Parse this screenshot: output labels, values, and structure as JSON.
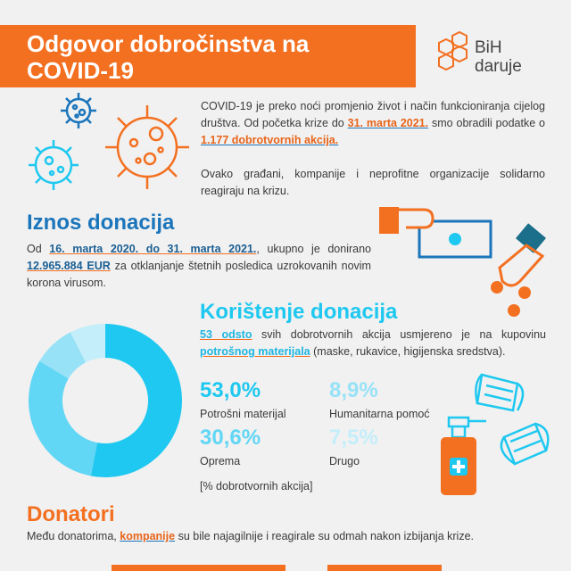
{
  "header": {
    "title": "Odgovor dobročinstva na COVID-19",
    "logo": [
      "BiH",
      "daruje"
    ]
  },
  "intro": {
    "paragraph1": [
      "COVID-19 je preko noći promjenio život i način funkcioniranja cijelog društva. Od početka krize do",
      "31. marta 2021.",
      "smo obradili podatke o",
      "1.177 dobrotvornih akcija."
    ],
    "paragraph2": "Ovako građani, kompanije i neprofitne organizacije solidarno reagiraju na krizu."
  },
  "donations": {
    "heading": "Iznos donacija",
    "text": [
      "Od",
      "16. marta 2020. do 31. marta 2021.",
      ", ukupno je donirano",
      "12.965.884 EUR",
      "za otklanjanje štetnih posledica uzrokovanih novim korona virusom."
    ]
  },
  "usage": {
    "heading": "Korištenje donacija",
    "text": [
      "53 odsto",
      "svih dobrotvornih akcija usmjereno je na kupovinu",
      "potrošnog materijala",
      "(maske, rukavice, higijenska sredstva)."
    ]
  },
  "chart_data": {
    "type": "donut",
    "categories": [
      "Potrošni materijal",
      "Oprema",
      "Humanitarna pomoć",
      "Drugo"
    ],
    "values": [
      53.0,
      30.6,
      8.9,
      7.5
    ],
    "value_labels": [
      "53,0%",
      "30,6%",
      "8,9%",
      "7,5%"
    ],
    "colors": [
      "#1ec8f0",
      "#62d6f5",
      "#97e2f7",
      "#c4eefa"
    ],
    "note": "[% dobrotvornih akcija]"
  },
  "donors": {
    "heading": "Donatori",
    "text": [
      "Među donatorima,",
      "kompanije",
      "su bile najagilnije i reagirale su odmah nakon izbijanja krize."
    ]
  }
}
